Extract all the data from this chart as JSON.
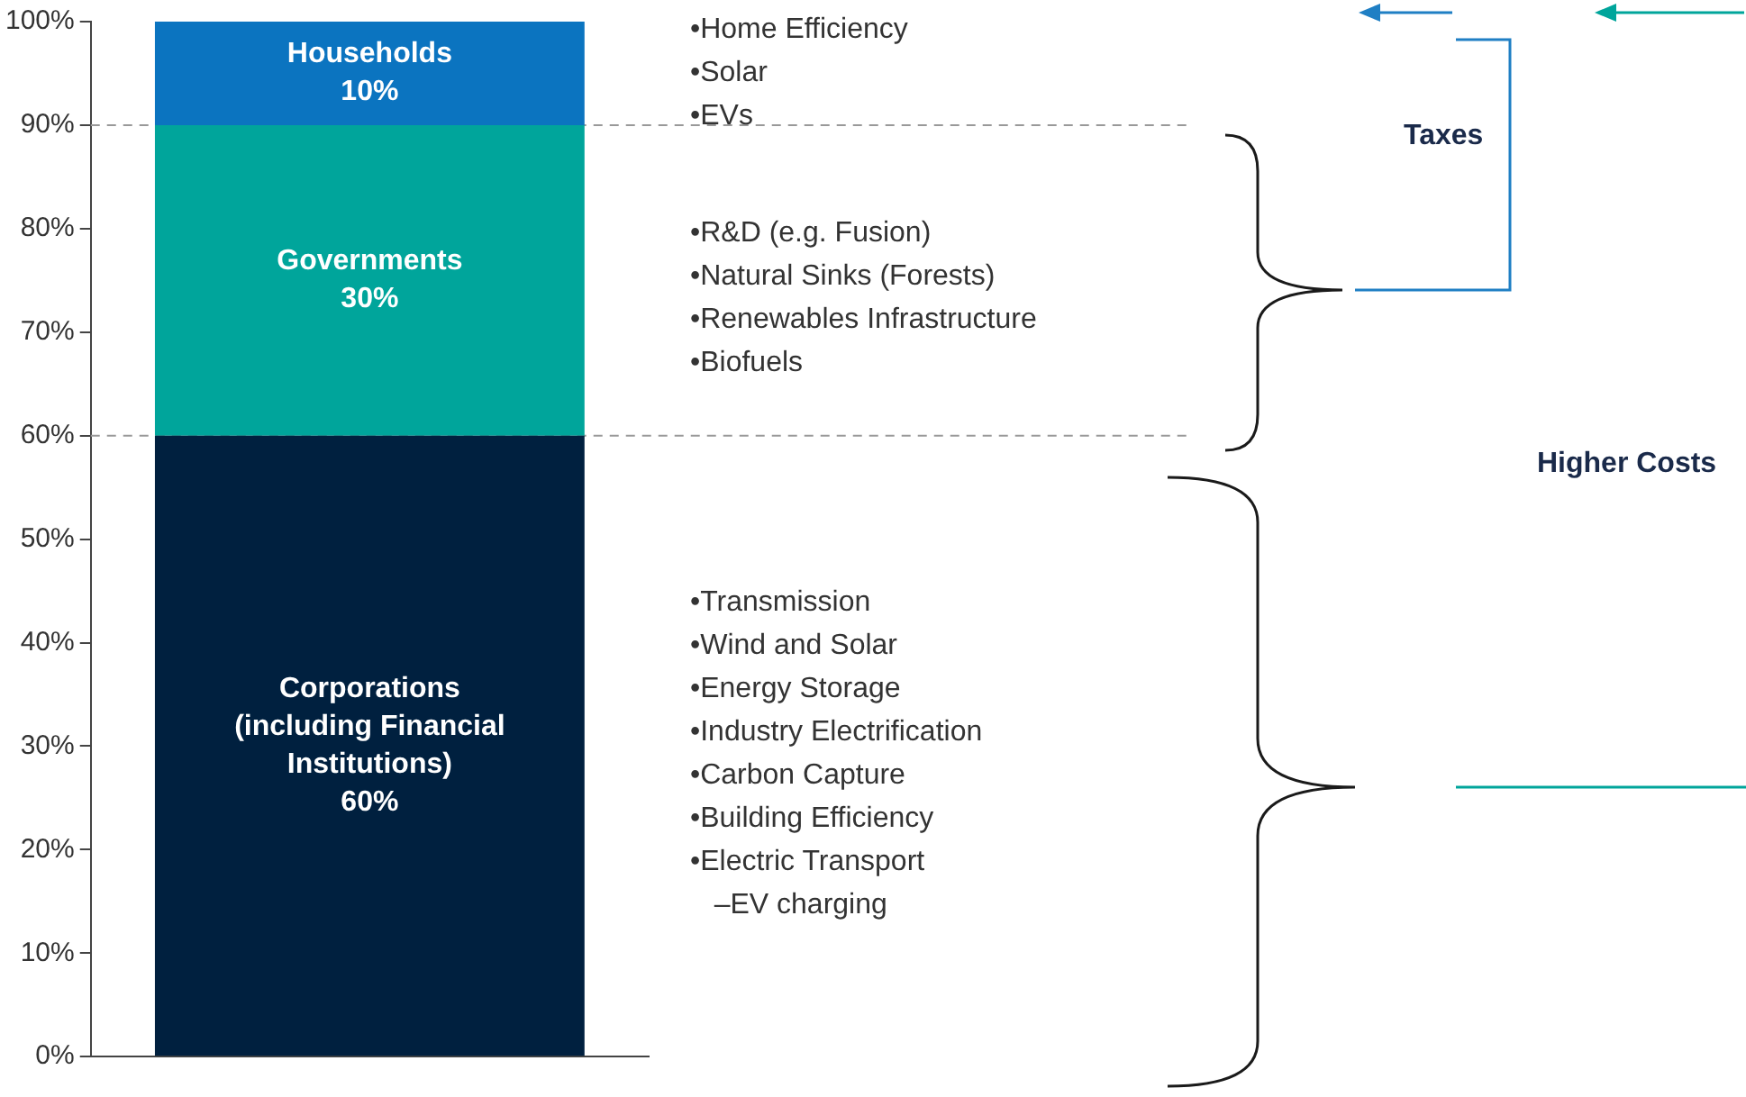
{
  "chart_data": {
    "type": "bar",
    "stacked": true,
    "categories": [
      null
    ],
    "series": [
      {
        "name": "Corporations (including Financial Institutions)",
        "color": "#00203f",
        "values": [
          60
        ],
        "value_labels": [
          "60%"
        ]
      },
      {
        "name": "Governments",
        "color": "#00a59b",
        "values": [
          30
        ],
        "value_labels": [
          "30%"
        ]
      },
      {
        "name": "Households",
        "color": "#0b74c0",
        "values": [
          10
        ],
        "value_labels": [
          "10%"
        ]
      }
    ],
    "ylim": [
      0,
      100
    ],
    "yticks": [
      {
        "value": 0,
        "label": "0%"
      },
      {
        "value": 10,
        "label": "10%"
      },
      {
        "value": 20,
        "label": "20%"
      },
      {
        "value": 30,
        "label": "30%"
      },
      {
        "value": 40,
        "label": "40%"
      },
      {
        "value": 50,
        "label": "50%"
      },
      {
        "value": 60,
        "label": "60%"
      },
      {
        "value": 70,
        "label": "70%"
      },
      {
        "value": 80,
        "label": "80%"
      },
      {
        "value": 90,
        "label": "90%"
      },
      {
        "value": 100,
        "label": "100%"
      }
    ],
    "ref_lines": [
      {
        "axis": "y",
        "value": 90,
        "color": "#999999",
        "line_style": "dashed"
      },
      {
        "axis": "y",
        "value": 60,
        "color": "#999999",
        "line_style": "dashed"
      }
    ],
    "grid": false,
    "legend": false,
    "annotations": [
      "•Home Efficiency\n•Solar\n•EVs",
      "•R&D (e.g. Fusion)\n•Natural Sinks (Forests)\n•Renewables Infrastructure\n•Biofuels",
      "•Transmission\n•Wind and Solar\n•Energy Storage\n•Industry Electrification\n•Carbon Capture\n•Building Efficiency\n•Electric Transport\n   –EV charging",
      "Taxes",
      "Higher Costs"
    ]
  }
}
